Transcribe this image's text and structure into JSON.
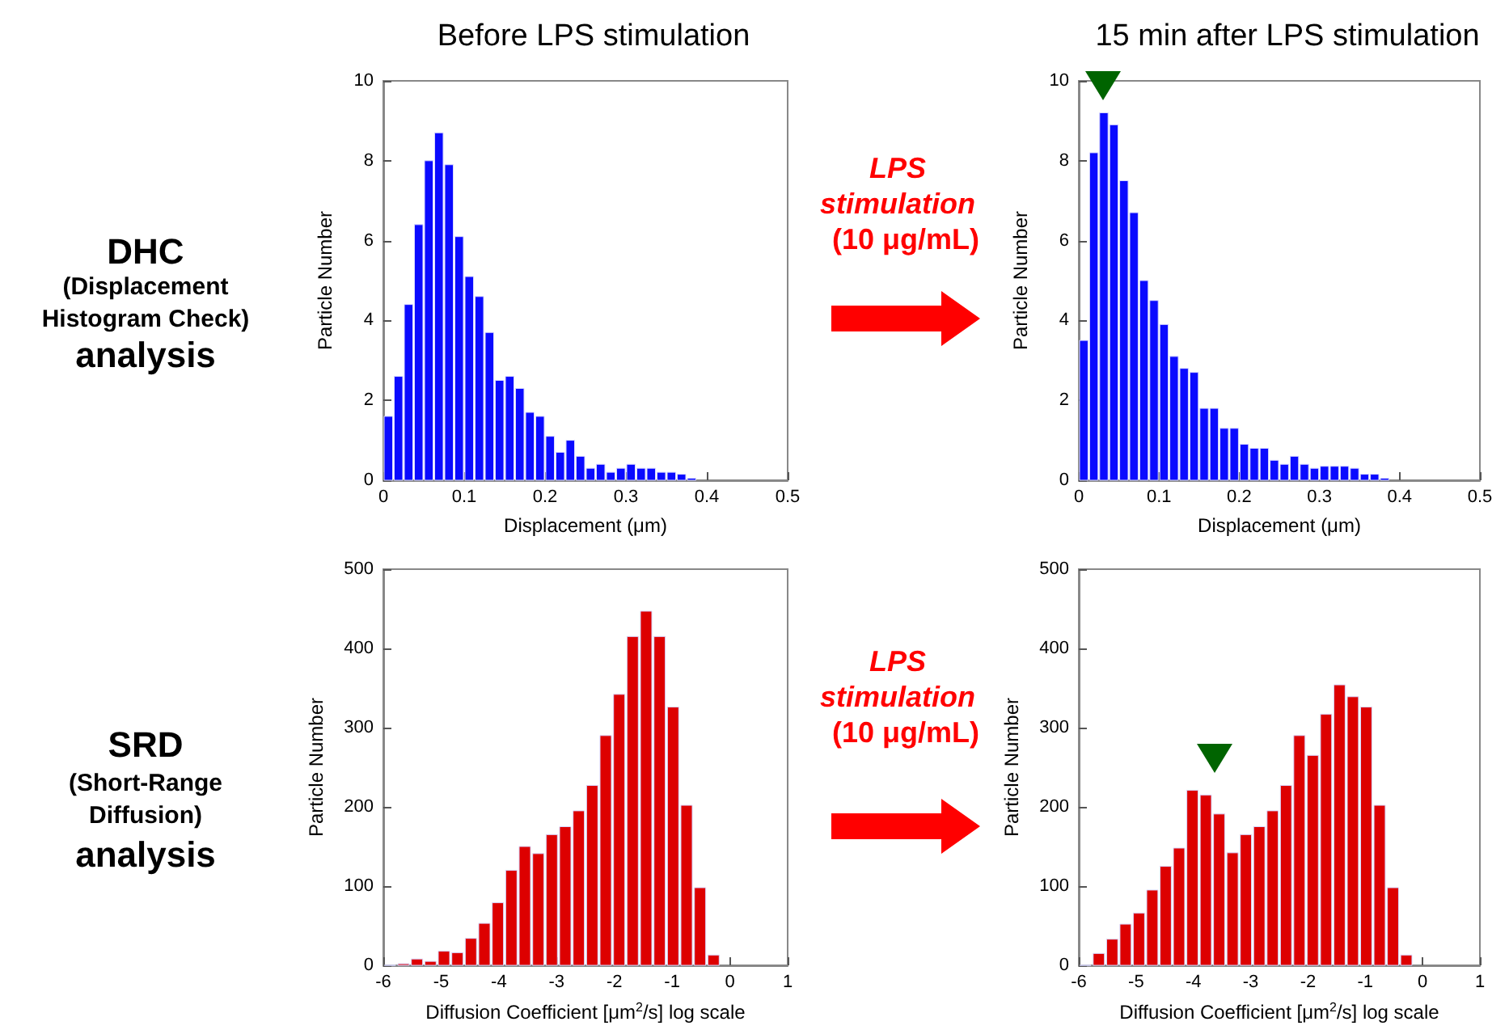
{
  "chart_data": [
    {
      "type": "histogram",
      "title": "Before LPS stimulation",
      "xlabel": "Displacement (μm)",
      "ylabel": "Particle Number",
      "color": "#0a0aff",
      "xlim": [
        0,
        0.5
      ],
      "xticks": [
        0,
        0.1,
        0.2,
        0.3,
        0.4,
        0.5
      ],
      "ylim": [
        0,
        10
      ],
      "yticks": [
        0,
        2,
        4,
        6,
        8,
        10
      ],
      "bins": [
        0,
        0.0125,
        0.025,
        0.0375,
        0.05,
        0.0625,
        0.075,
        0.0875,
        0.1,
        0.1125,
        0.125,
        0.1375,
        0.15,
        0.1625,
        0.175,
        0.1875,
        0.2,
        0.2125,
        0.225,
        0.2375,
        0.25,
        0.2625,
        0.275,
        0.2875,
        0.3,
        0.3125,
        0.325,
        0.3375,
        0.35,
        0.3625,
        0.375,
        0.3875
      ],
      "values": [
        1.6,
        2.6,
        4.4,
        6.4,
        8.0,
        8.7,
        7.9,
        6.1,
        5.1,
        4.6,
        3.7,
        2.5,
        2.6,
        2.3,
        1.7,
        1.6,
        1.1,
        0.7,
        1.0,
        0.6,
        0.3,
        0.4,
        0.2,
        0.3,
        0.4,
        0.3,
        0.3,
        0.2,
        0.2,
        0.15,
        0.05
      ],
      "annotations": [
        "DHC",
        "(Displacement Histogram Check)",
        "analysis"
      ]
    },
    {
      "type": "histogram",
      "title": "15 min after LPS stimulation",
      "xlabel": "Displacement (μm)",
      "ylabel": "Particle Number",
      "color": "#0a0aff",
      "xlim": [
        0,
        0.5
      ],
      "xticks": [
        0,
        0.1,
        0.2,
        0.3,
        0.4,
        0.5
      ],
      "ylim": [
        0,
        10
      ],
      "yticks": [
        0,
        2,
        4,
        6,
        8,
        10
      ],
      "bins": [
        0,
        0.0125,
        0.025,
        0.0375,
        0.05,
        0.0625,
        0.075,
        0.0875,
        0.1,
        0.1125,
        0.125,
        0.1375,
        0.15,
        0.1625,
        0.175,
        0.1875,
        0.2,
        0.2125,
        0.225,
        0.2375,
        0.25,
        0.2625,
        0.275,
        0.2875,
        0.3,
        0.3125,
        0.325,
        0.3375,
        0.35,
        0.3625,
        0.375,
        0.3875
      ],
      "values": [
        3.5,
        8.2,
        9.2,
        8.9,
        7.5,
        6.7,
        5.0,
        4.5,
        3.9,
        3.1,
        2.8,
        2.7,
        1.8,
        1.8,
        1.3,
        1.3,
        0.9,
        0.8,
        0.8,
        0.5,
        0.4,
        0.6,
        0.4,
        0.3,
        0.35,
        0.35,
        0.35,
        0.3,
        0.15,
        0.15,
        0.05
      ],
      "annotations": [
        "LPS stimulation",
        "(10 μg/mL)"
      ]
    },
    {
      "type": "histogram",
      "xlabel": "Diffusion Coefficient [μm$^{2}$/s] log scale",
      "ylabel": "Particle Number",
      "color": "#dd0000",
      "xlim": [
        -6,
        1
      ],
      "xticks": [
        -6,
        -5,
        -4,
        -3,
        -2,
        -1,
        0,
        1
      ],
      "ylim": [
        0,
        500
      ],
      "yticks": [
        0,
        100,
        200,
        300,
        400,
        500
      ],
      "bins": [
        -6,
        -5.767,
        -5.533,
        -5.3,
        -5.067,
        -4.833,
        -4.6,
        -4.367,
        -4.133,
        -3.9,
        -3.667,
        -3.433,
        -3.2,
        -2.967,
        -2.733,
        -2.5,
        -2.267,
        -2.033,
        -1.8,
        -1.567,
        -1.333,
        -1.1,
        -0.867,
        -0.633,
        -0.4,
        -0.167
      ],
      "values": [
        0,
        2,
        8,
        5,
        18,
        16,
        34,
        53,
        79,
        120,
        150,
        141,
        165,
        175,
        195,
        227,
        290,
        342,
        415,
        447,
        415,
        326,
        202,
        98,
        13
      ],
      "annotations": [
        "SRD",
        "(Short-Range Diffusion)",
        "analysis"
      ]
    },
    {
      "type": "histogram",
      "xlabel": "Diffusion Coefficient [μm$^{2}$/s] log scale",
      "ylabel": "Particle Number",
      "color": "#dd0000",
      "xlim": [
        -6,
        1
      ],
      "xticks": [
        -6,
        -5,
        -4,
        -3,
        -2,
        -1,
        0,
        1
      ],
      "ylim": [
        0,
        500
      ],
      "yticks": [
        0,
        100,
        200,
        300,
        400,
        500
      ],
      "bins": [
        -6,
        -5.767,
        -5.533,
        -5.3,
        -5.067,
        -4.833,
        -4.6,
        -4.367,
        -4.133,
        -3.9,
        -3.667,
        -3.433,
        -3.2,
        -2.967,
        -2.733,
        -2.5,
        -2.267,
        -2.033,
        -1.8,
        -1.567,
        -1.333,
        -1.1,
        -0.867,
        -0.633,
        -0.4,
        -0.167
      ],
      "values": [
        0,
        15,
        33,
        52,
        66,
        95,
        125,
        148,
        221,
        215,
        191,
        142,
        165,
        175,
        195,
        227,
        290,
        265,
        317,
        354,
        339,
        326,
        202,
        98,
        13
      ],
      "annotations": [
        "LPS stimulation",
        "(10 μg/mL)"
      ]
    }
  ]
}
